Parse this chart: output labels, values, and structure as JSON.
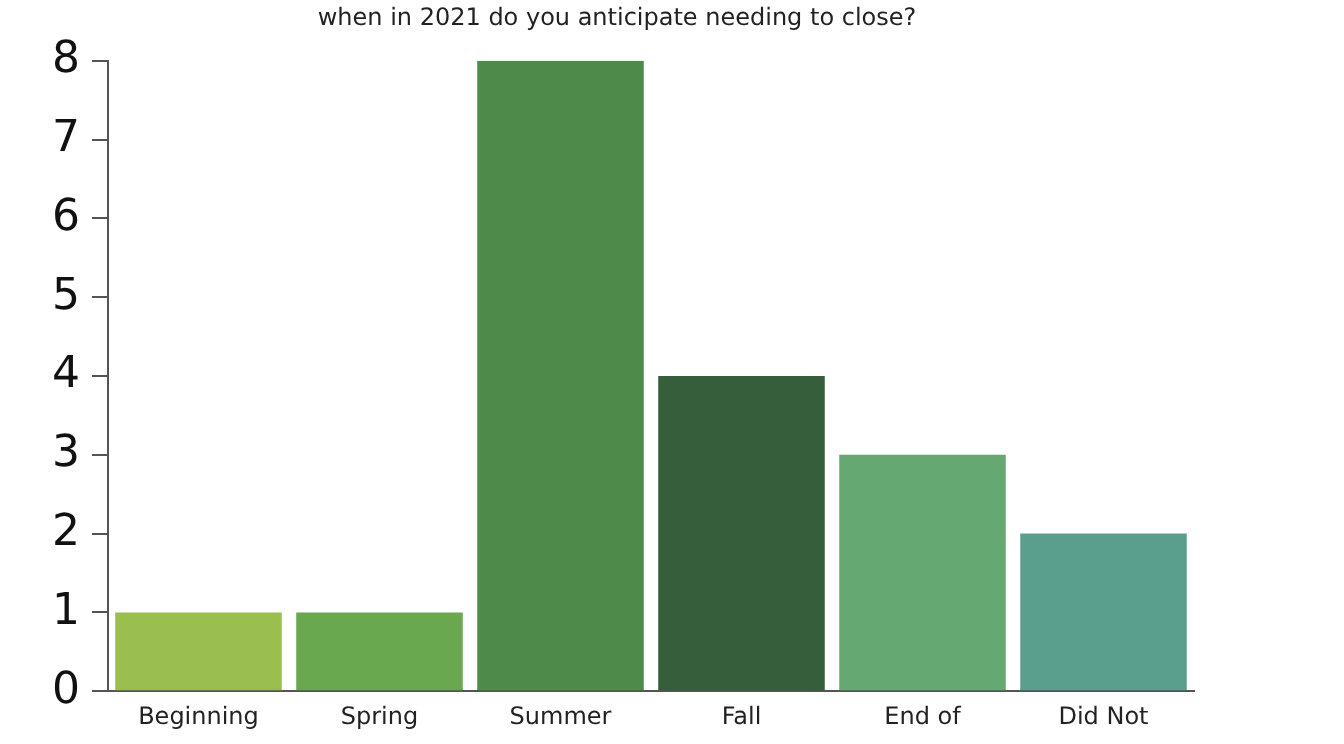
{
  "chart_data": {
    "type": "bar",
    "title": "when in 2021 do you anticipate needing to close?",
    "categories": [
      "Beginning",
      "Spring",
      "Summer",
      "Fall",
      "End of",
      "Did Not"
    ],
    "values": [
      1,
      1,
      8,
      4,
      3,
      2
    ],
    "colors": [
      "#9bbf4f",
      "#6aa84f",
      "#4e8a4a",
      "#365e3b",
      "#66a872",
      "#5a9e8e"
    ],
    "ylim": [
      0,
      8
    ],
    "yticks": [
      0,
      1,
      2,
      3,
      4,
      5,
      6,
      7,
      8
    ],
    "grid": false,
    "legend": false
  }
}
